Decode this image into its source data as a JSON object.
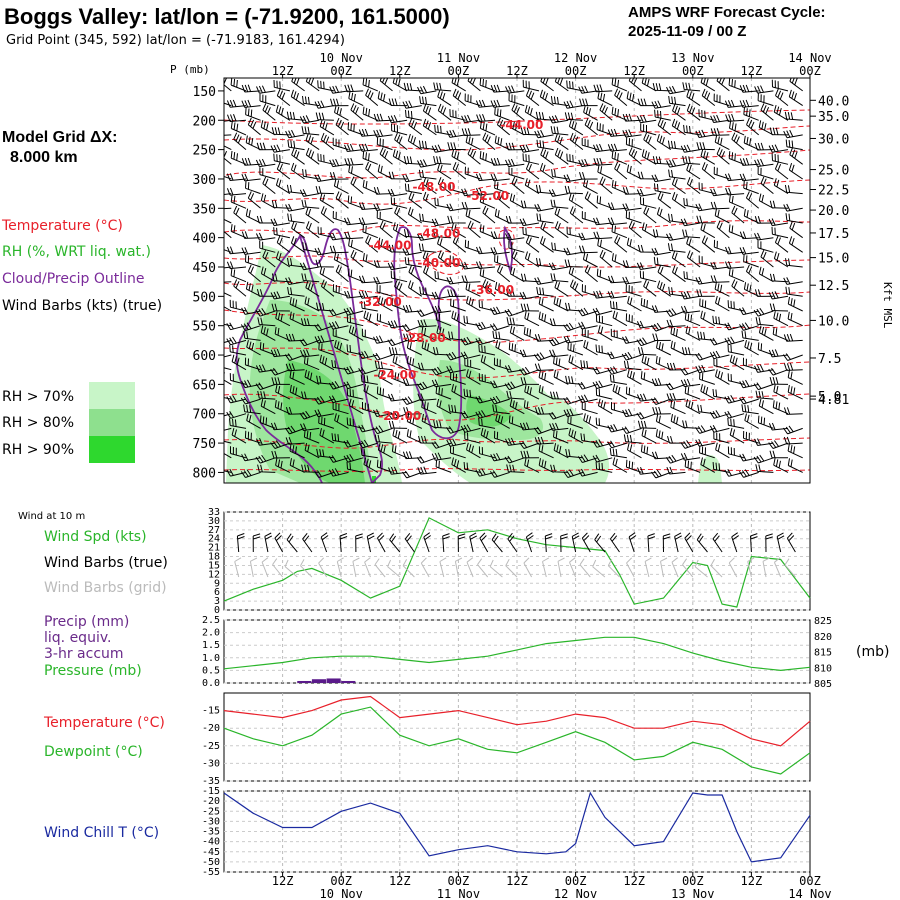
{
  "header": {
    "title": "Boggs Valley:  lat/lon = (-71.9200, 161.5000)",
    "subtitle": "Grid Point (345, 592) lat/lon = (-71.9183, 161.4294)",
    "cycle_label": "AMPS WRF Forecast Cycle:",
    "cycle_value": "2025-11-09 / 00  Z"
  },
  "time_axis": {
    "hour_labels": [
      "12Z",
      "00Z",
      "12Z",
      "00Z",
      "12Z",
      "00Z",
      "12Z",
      "00Z",
      "12Z",
      "00Z"
    ],
    "day_labels": [
      "10 Nov",
      "11 Nov",
      "12 Nov",
      "13 Nov",
      "14 Nov"
    ],
    "day_label_hours": [
      24,
      48,
      72,
      96,
      120
    ]
  },
  "left_panel": {
    "grid_title": "Model Grid ΔX:",
    "grid_value": "8.000 km",
    "legend": [
      {
        "label": "Temperature (°C)",
        "color": "#e8202a"
      },
      {
        "label": "RH (%, WRT liq. wat.)",
        "color": "#2ab52a"
      },
      {
        "label": "Cloud/Precip Outline",
        "color": "#7a2a9a"
      },
      {
        "label": "Wind Barbs (kts) (true)",
        "color": "#000000"
      }
    ],
    "rh_legend": [
      {
        "label": "RH > 70%",
        "color": "#c8f5c8"
      },
      {
        "label": "RH > 80%",
        "color": "#8ee08e"
      },
      {
        "label": "RH > 90%",
        "color": "#2ed82e"
      }
    ]
  },
  "chart_data": [
    {
      "type": "heatmap",
      "name": "vertical-cross-section",
      "ylabel": "P (mb)",
      "yticks": [
        150,
        200,
        250,
        300,
        350,
        400,
        450,
        500,
        550,
        600,
        650,
        700,
        750,
        800
      ],
      "right_axis_label": "Kft MSL",
      "right_ticks": [
        "40.0",
        "35.0",
        "30.0",
        "25.0",
        "22.5",
        "20.0",
        "17.5",
        "15.0",
        "12.5",
        "10.0",
        "7.5",
        "5.0",
        "4.81"
      ],
      "right_tick_pressure": [
        166,
        193,
        231,
        284,
        318,
        353,
        392,
        434,
        481,
        541,
        605,
        670,
        675
      ],
      "contour_labels": [
        {
          "text": "-44.00",
          "hour": 61,
          "p": 208
        },
        {
          "text": "-48.00",
          "hour": 43,
          "p": 314
        },
        {
          "text": "-52.00",
          "hour": 54,
          "p": 329
        },
        {
          "text": "-48.00",
          "hour": 44,
          "p": 393
        },
        {
          "text": "-44.00",
          "hour": 34,
          "p": 413
        },
        {
          "text": "-40.00",
          "hour": 44,
          "p": 443
        },
        {
          "text": "-36.00",
          "hour": 55,
          "p": 489
        },
        {
          "text": "-32.00",
          "hour": 32,
          "p": 510
        },
        {
          "text": "-28.00",
          "hour": 41,
          "p": 571
        },
        {
          "text": "-24.00",
          "hour": 35,
          "p": 634
        },
        {
          "text": "-20.00",
          "hour": 36,
          "p": 704
        }
      ],
      "contour_levels": [
        -52,
        -48,
        -44,
        -40,
        -36,
        -32,
        -28,
        -24,
        -20
      ]
    },
    {
      "type": "line",
      "name": "wind",
      "label_small": "Wind at 10 m",
      "labels": [
        "Wind Spd (kts)",
        "Wind Barbs (true)",
        "Wind Barbs (grid)"
      ],
      "yticks": [
        0,
        3,
        6,
        9,
        12,
        15,
        18,
        21,
        24,
        27,
        30,
        33
      ],
      "ylim": [
        0,
        33
      ],
      "x": [
        0,
        6,
        12,
        15,
        18,
        24,
        30,
        36,
        42,
        48,
        54,
        60,
        66,
        72,
        78,
        81,
        84,
        90,
        96,
        99,
        102,
        105,
        108,
        114,
        120
      ],
      "series": [
        {
          "name": "Wind Spd (kts)",
          "values": [
            3,
            7,
            10,
            13,
            14,
            10,
            4,
            8,
            31,
            26,
            27,
            24,
            22,
            21,
            20,
            12,
            2,
            4,
            16,
            15,
            2,
            1,
            18,
            17,
            4
          ]
        }
      ]
    },
    {
      "type": "line",
      "name": "precip-pressure",
      "labels": [
        "Precip (mm)",
        "liq. equiv.",
        "3-hr accum",
        "Pressure (mb)"
      ],
      "yticks": [
        "0.0",
        "0.5",
        "1.0",
        "1.5",
        "2.0",
        "2.5"
      ],
      "ylim": [
        0,
        2.5
      ],
      "right_ticks": [
        "805",
        "810",
        "815",
        "820",
        "825"
      ],
      "right_ylim": [
        805,
        825
      ],
      "right_label": "(mb)",
      "bars_x": [
        18,
        21,
        24,
        27
      ],
      "bars_values": [
        0.08,
        0.15,
        0.18,
        0.08
      ],
      "x": [
        0,
        6,
        12,
        18,
        24,
        30,
        36,
        42,
        48,
        54,
        60,
        66,
        72,
        78,
        84,
        90,
        96,
        102,
        108,
        114,
        120
      ],
      "series": [
        {
          "name": "Pressure (mb)",
          "values": [
            809.5,
            810.5,
            811.5,
            813.0,
            813.5,
            813.5,
            812.5,
            811.5,
            812.5,
            813.5,
            815.5,
            817.5,
            818.5,
            819.5,
            819.5,
            817.5,
            814.5,
            812.0,
            810.0,
            809.0,
            810.0
          ]
        }
      ]
    },
    {
      "type": "line",
      "name": "temperature-dewpoint",
      "labels": [
        "Temperature (°C)",
        "Dewpoint (°C)"
      ],
      "yticks": [
        -15,
        -20,
        -25,
        -30,
        -35
      ],
      "ylim": [
        -35,
        -10
      ],
      "x": [
        0,
        6,
        12,
        18,
        24,
        30,
        36,
        42,
        48,
        54,
        60,
        66,
        72,
        78,
        84,
        90,
        96,
        102,
        108,
        114,
        120
      ],
      "series": [
        {
          "name": "Temperature (°C)",
          "values": [
            -15,
            -16,
            -17,
            -15,
            -12,
            -11,
            -17,
            -16,
            -15,
            -17,
            -19,
            -18,
            -16,
            -17,
            -20,
            -20,
            -18,
            -19,
            -23,
            -25,
            -18
          ]
        },
        {
          "name": "Dewpoint (°C)",
          "values": [
            -20,
            -23,
            -25,
            -22,
            -16,
            -14,
            -22,
            -25,
            -23,
            -26,
            -27,
            -24,
            -21,
            -24,
            -29,
            -28,
            -24,
            -26,
            -31,
            -33,
            -27
          ]
        }
      ]
    },
    {
      "type": "line",
      "name": "wind-chill",
      "labels": [
        "Wind Chill T (°C)"
      ],
      "yticks": [
        -15,
        -20,
        -25,
        -30,
        -35,
        -40,
        -45,
        -50,
        -55
      ],
      "ylim": [
        -55,
        -15
      ],
      "x": [
        0,
        6,
        12,
        18,
        24,
        30,
        36,
        42,
        48,
        54,
        60,
        66,
        70,
        72,
        75,
        78,
        84,
        90,
        96,
        99,
        102,
        105,
        108,
        114,
        120
      ],
      "series": [
        {
          "name": "Wind Chill T (°C)",
          "values": [
            -16,
            -26,
            -33,
            -33,
            -25,
            -21,
            -26,
            -47,
            -44,
            -42,
            -45,
            -46,
            -45,
            -41,
            -16,
            -28,
            -42,
            -40,
            -16,
            -17,
            -17,
            -35,
            -50,
            -48,
            -27
          ]
        }
      ]
    }
  ]
}
